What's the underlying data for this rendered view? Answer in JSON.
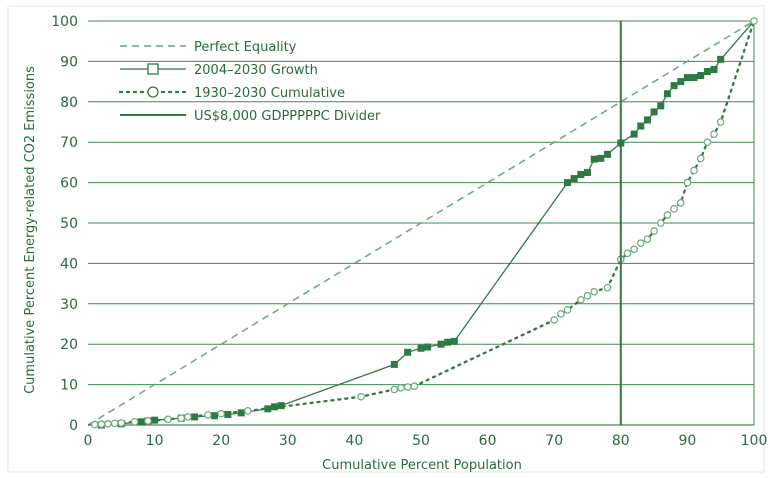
{
  "colors": {
    "primary": "#2f7a44",
    "grid": "#3f8a55",
    "light": "#6aa87c",
    "text": "#2a6a3e",
    "background": "#ffffff"
  },
  "chart_data": {
    "type": "line",
    "xlabel": "Cumulative Percent Population",
    "ylabel": "Cumulative Percent Energy-related CO2 Emissions",
    "xlim": [
      0,
      100
    ],
    "ylim": [
      0,
      100
    ],
    "xticks": [
      "0",
      "10",
      "20",
      "30",
      "40",
      "50",
      "60",
      "70",
      "80",
      "90",
      "100"
    ],
    "yticks": [
      "0",
      "10",
      "20",
      "30",
      "40",
      "50",
      "60",
      "70",
      "80",
      "90",
      "100"
    ],
    "grid": "horizontal",
    "legend_position": "top-left",
    "divider_x": 80,
    "series": [
      {
        "name": "Perfect Equality",
        "style": "dashed",
        "marker": "none",
        "points": [
          [
            0,
            0
          ],
          [
            100,
            100
          ]
        ]
      },
      {
        "name": "2004–2030 Growth",
        "style": "solid",
        "marker": "filled-square",
        "points": [
          [
            0,
            0
          ],
          [
            2,
            0
          ],
          [
            5,
            0.3
          ],
          [
            8,
            0.8
          ],
          [
            9,
            1
          ],
          [
            10,
            1.2
          ],
          [
            14,
            1.7
          ],
          [
            16,
            2
          ],
          [
            19,
            2.3
          ],
          [
            21,
            2.6
          ],
          [
            23,
            3
          ],
          [
            27,
            4
          ],
          [
            28,
            4.5
          ],
          [
            29,
            4.8
          ],
          [
            46,
            15
          ],
          [
            48,
            18
          ],
          [
            50,
            19
          ],
          [
            51,
            19.3
          ],
          [
            53,
            20
          ],
          [
            54,
            20.5
          ],
          [
            55,
            20.7
          ],
          [
            72,
            60
          ],
          [
            73,
            61
          ],
          [
            74,
            62
          ],
          [
            75,
            62.5
          ],
          [
            76,
            65.8
          ],
          [
            77,
            66
          ],
          [
            78,
            67
          ],
          [
            80,
            69.8
          ],
          [
            82,
            72
          ],
          [
            83,
            74
          ],
          [
            84,
            75.5
          ],
          [
            85,
            77.5
          ],
          [
            86,
            79
          ],
          [
            87,
            82
          ],
          [
            88,
            84
          ],
          [
            89,
            85
          ],
          [
            90,
            86
          ],
          [
            91,
            86
          ],
          [
            92,
            86.5
          ],
          [
            93,
            87.5
          ],
          [
            94,
            88
          ],
          [
            95,
            90.5
          ],
          [
            100,
            100
          ]
        ]
      },
      {
        "name": "1930–2030 Cumulative",
        "style": "dotted",
        "marker": "open-circle",
        "points": [
          [
            1,
            0.1
          ],
          [
            2,
            0.2
          ],
          [
            3,
            0.3
          ],
          [
            4,
            0.4
          ],
          [
            5,
            0.5
          ],
          [
            7,
            0.8
          ],
          [
            9,
            1
          ],
          [
            12,
            1.4
          ],
          [
            14,
            1.7
          ],
          [
            15,
            2
          ],
          [
            18,
            2.5
          ],
          [
            20,
            2.8
          ],
          [
            24,
            3.5
          ],
          [
            41,
            7
          ],
          [
            46,
            8.8
          ],
          [
            47,
            9.2
          ],
          [
            48,
            9.4
          ],
          [
            49,
            9.6
          ],
          [
            70,
            26
          ],
          [
            71,
            27.5
          ],
          [
            72,
            28.5
          ],
          [
            74,
            31
          ],
          [
            75,
            32
          ],
          [
            76,
            33
          ],
          [
            78,
            34
          ],
          [
            80,
            41
          ],
          [
            81,
            42.5
          ],
          [
            82,
            43.5
          ],
          [
            83,
            45
          ],
          [
            84,
            46
          ],
          [
            85,
            48
          ],
          [
            86,
            50
          ],
          [
            87,
            52
          ],
          [
            88,
            53.5
          ],
          [
            89,
            55
          ],
          [
            90,
            60
          ],
          [
            91,
            63
          ],
          [
            92,
            66
          ],
          [
            93,
            70
          ],
          [
            94,
            72
          ],
          [
            95,
            75
          ],
          [
            100,
            100
          ]
        ]
      },
      {
        "name": "US$8,000 GDPPPPPC Divider",
        "style": "solid",
        "marker": "none",
        "points": [
          [
            80,
            0
          ],
          [
            80,
            100
          ]
        ]
      }
    ]
  }
}
